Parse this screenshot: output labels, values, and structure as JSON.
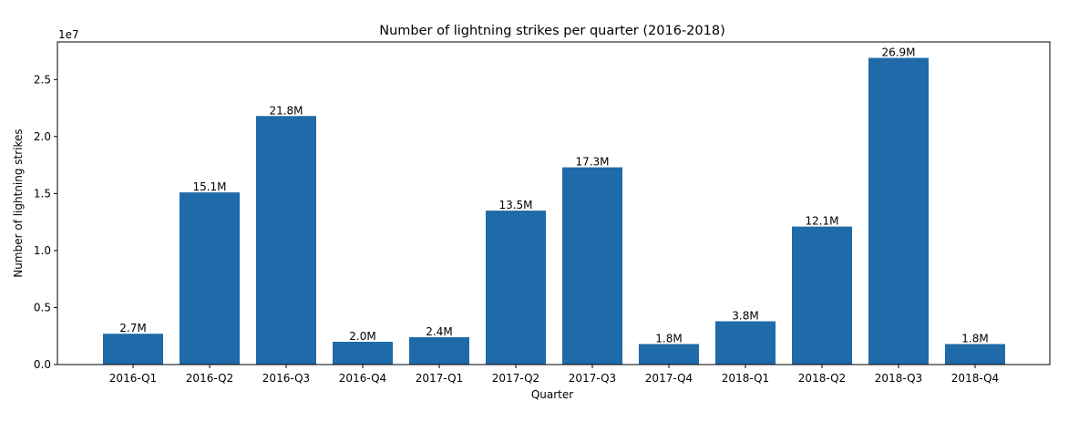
{
  "chart_data": {
    "type": "bar",
    "title": "Number of lightning strikes per quarter (2016-2018)",
    "xlabel": "Quarter",
    "ylabel": "Number of lightning strikes",
    "y_offset_label": "1e7",
    "categories": [
      "2016-Q1",
      "2016-Q2",
      "2016-Q3",
      "2016-Q4",
      "2017-Q1",
      "2017-Q2",
      "2017-Q3",
      "2017-Q4",
      "2018-Q1",
      "2018-Q2",
      "2018-Q3",
      "2018-Q4"
    ],
    "values": [
      2700000,
      15100000,
      21800000,
      2000000,
      2400000,
      13500000,
      17300000,
      1800000,
      3800000,
      12100000,
      26900000,
      1800000
    ],
    "data_labels": [
      "2.7M",
      "15.1M",
      "21.8M",
      "2.0M",
      "2.4M",
      "13.5M",
      "17.3M",
      "1.8M",
      "3.8M",
      "12.1M",
      "26.9M",
      "1.8M"
    ],
    "yticks": [
      0,
      5000000,
      10000000,
      15000000,
      20000000,
      25000000
    ],
    "ytick_labels": [
      "0.0",
      "0.5",
      "1.0",
      "1.5",
      "2.0",
      "2.5"
    ],
    "ylim": [
      0,
      28300000
    ],
    "grid": false,
    "legend": "none",
    "bar_color": "#1f6aa9"
  }
}
